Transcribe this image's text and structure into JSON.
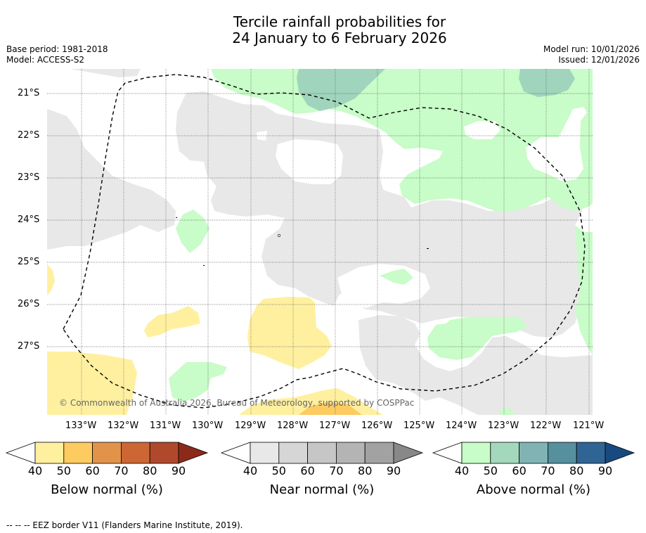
{
  "title_line1": "Tercile rainfall probabilities for",
  "title_line2": "24 January to 6 February 2026",
  "meta_left": [
    "Base period: 1981-2018",
    "Model: ACCESS-S2"
  ],
  "meta_right": [
    "Model run: 10/01/2026",
    "Issued: 12/01/2026"
  ],
  "lat_labels": [
    "21°S",
    "22°S",
    "23°S",
    "24°S",
    "25°S",
    "26°S",
    "27°S"
  ],
  "lon_labels": [
    "133°W",
    "132°W",
    "131°W",
    "130°W",
    "129°W",
    "128°W",
    "127°W",
    "126°W",
    "125°W",
    "124°W",
    "123°W",
    "122°W",
    "121°W"
  ],
  "copyright": "© Commonwealth of Australia 2026, Bureau of Meteorology, supported by COSPPac",
  "footer": "--  --  -- EEZ border V11 (Flanders Marine Institute, 2019).",
  "colorbars": [
    {
      "label": "Below normal (%)",
      "ticks": [
        "40",
        "50",
        "60",
        "70",
        "80",
        "90"
      ],
      "colors": [
        "#fff0a0",
        "#fdcb60",
        "#e2934a",
        "#cc6634",
        "#b0492b",
        "#8c2a1a"
      ]
    },
    {
      "label": "Near normal (%)",
      "ticks": [
        "40",
        "50",
        "60",
        "70",
        "80",
        "90"
      ],
      "colors": [
        "#e8e8e8",
        "#d6d6d6",
        "#c6c6c6",
        "#b4b4b4",
        "#a2a2a2",
        "#888888"
      ]
    },
    {
      "label": "Above normal (%)",
      "ticks": [
        "40",
        "50",
        "60",
        "70",
        "80",
        "90"
      ],
      "colors": [
        "#c8fcc8",
        "#a4d8bc",
        "#80b4b4",
        "#568f9e",
        "#306494",
        "#184a80"
      ]
    }
  ]
}
